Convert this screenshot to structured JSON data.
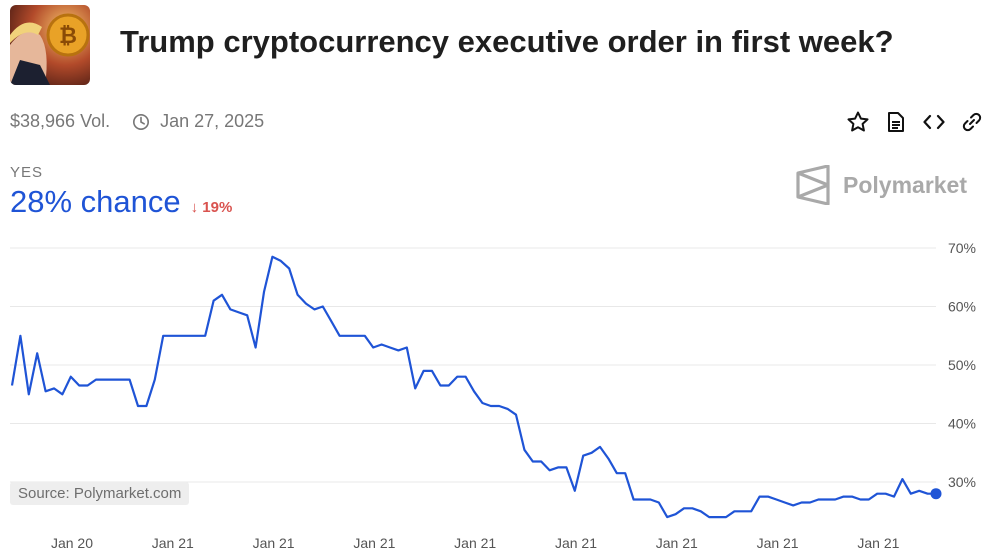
{
  "header": {
    "title": "Trump cryptocurrency executive order in first week?",
    "volume": "$38,966 Vol.",
    "date": "Jan 27, 2025"
  },
  "outcome": {
    "label": "YES",
    "chance": "28% chance",
    "change": "19%"
  },
  "brand": {
    "name": "Polymarket"
  },
  "source": "Source: Polymarket.com",
  "colors": {
    "line": "#1f54d6",
    "change_down": "#d9534f",
    "grid": "#e8e8e8"
  },
  "icons": [
    "star-icon",
    "document-icon",
    "code-icon",
    "link-icon",
    "clock-icon"
  ],
  "chart_data": {
    "type": "line",
    "title": "",
    "xlabel": "",
    "ylabel": "",
    "ylim": [
      23,
      70
    ],
    "yticks": [
      "70%",
      "60%",
      "50%",
      "40%",
      "30%"
    ],
    "ytick_values": [
      70,
      60,
      50,
      40,
      30
    ],
    "xticks": [
      "Jan 20",
      "Jan 21",
      "Jan 21",
      "Jan 21",
      "Jan 21",
      "Jan 21",
      "Jan 21",
      "Jan 21",
      "Jan 21"
    ],
    "grid": true,
    "series": [
      {
        "values": [
          46.5,
          55,
          45,
          52,
          45.5,
          46,
          45,
          48,
          46.5,
          46.5,
          47.5,
          47.5,
          47.5,
          47.5,
          47.5,
          43,
          43,
          47.5,
          55,
          55,
          55,
          55,
          55,
          55,
          61,
          62,
          59.5,
          59,
          58.5,
          53,
          62.5,
          68.5,
          67.8,
          66.5,
          62,
          60.5,
          59.5,
          60,
          57.5,
          55,
          55,
          55,
          55,
          53,
          53.5,
          53,
          52.5,
          53,
          46,
          49,
          49,
          46.5,
          46.5,
          48,
          48,
          45.5,
          43.5,
          43,
          43,
          42.5,
          41.5,
          35.5,
          33.5,
          33.5,
          32,
          32.5,
          32.5,
          28.5,
          34.5,
          35,
          36,
          34,
          31.5,
          31.5,
          27,
          27,
          27,
          26.5,
          24,
          24.5,
          25.5,
          25.5,
          25,
          24,
          24,
          24,
          25,
          25,
          25,
          27.5,
          27.5,
          27,
          26.5,
          26,
          26.5,
          26.5,
          27,
          27,
          27,
          27.5,
          27.5,
          27,
          27,
          28,
          28,
          27.5,
          30.5,
          28,
          28.5,
          28,
          28
        ]
      }
    ]
  }
}
